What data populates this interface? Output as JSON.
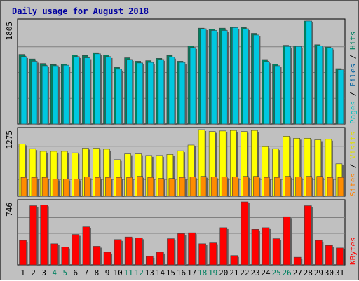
{
  "chart_data": {
    "type": "bar",
    "title": "Daily usage for August 2018",
    "categories": [
      "1",
      "2",
      "3",
      "4",
      "5",
      "6",
      "7",
      "8",
      "9",
      "10",
      "11",
      "12",
      "13",
      "14",
      "15",
      "16",
      "17",
      "18",
      "19",
      "20",
      "21",
      "22",
      "23",
      "24",
      "25",
      "26",
      "27",
      "28",
      "29",
      "30",
      "31"
    ],
    "weekend_days": [
      "4",
      "5",
      "11",
      "12",
      "18",
      "19",
      "25",
      "26"
    ],
    "panels": [
      {
        "id": "hits",
        "ymax_label": "1805",
        "ymax": 1805,
        "legend": [
          "Pages",
          "Files",
          "Hits"
        ],
        "legend_colors": [
          "#00c0c0",
          "#0060a0",
          "#008060"
        ],
        "series": [
          {
            "name": "Hits",
            "color": "#008060",
            "values": [
              1220,
              1140,
              1060,
              1040,
              1050,
              1210,
              1200,
              1250,
              1210,
              990,
              1160,
              1100,
              1110,
              1150,
              1200,
              1100,
              1370,
              1680,
              1660,
              1680,
              1700,
              1690,
              1590,
              1130,
              1050,
              1380,
              1370,
              1805,
              1390,
              1350,
              970
            ]
          },
          {
            "name": "Files",
            "color": "#00c8e0",
            "values": [
              1180,
              1100,
              1020,
              1020,
              1030,
              1180,
              1160,
              1230,
              1180,
              960,
              1130,
              1070,
              1080,
              1130,
              1170,
              1080,
              1340,
              1670,
              1640,
              1640,
              1690,
              1670,
              1560,
              1090,
              1020,
              1360,
              1360,
              1805,
              1370,
              1330,
              950
            ]
          }
        ]
      },
      {
        "id": "visits",
        "ymax_label": "1275",
        "ymax": 1275,
        "legend": [
          "Sites",
          "Visits"
        ],
        "legend_colors": [
          "#ff8000",
          "#e0e000"
        ],
        "series": [
          {
            "name": "Visits",
            "color": "#ffff00",
            "values": [
              1000,
              910,
              860,
              860,
              860,
              830,
              920,
              920,
              900,
              700,
              810,
              810,
              780,
              780,
              800,
              870,
              980,
              1275,
              1240,
              1250,
              1260,
              1240,
              1260,
              950,
              910,
              1150,
              1110,
              1110,
              1080,
              1090,
              620
            ]
          },
          {
            "name": "Sites",
            "color": "#ff8c00",
            "values": [
              360,
              360,
              360,
              330,
              330,
              330,
              370,
              360,
              360,
              360,
              360,
              380,
              360,
              340,
              340,
              360,
              370,
              380,
              370,
              370,
              370,
              380,
              380,
              360,
              360,
              380,
              370,
              380,
              380,
              360,
              360
            ]
          }
        ]
      },
      {
        "id": "kbytes",
        "ymax_label": "746",
        "ymax": 746,
        "legend": [
          "KBytes"
        ],
        "legend_colors": [
          "#ff0000"
        ],
        "series": [
          {
            "name": "KBytes",
            "color": "#ff0000",
            "values": [
              290,
              700,
              710,
              250,
              210,
              360,
              450,
              220,
              150,
              300,
              330,
              320,
              100,
              150,
              310,
              370,
              380,
              250,
              260,
              440,
              110,
              746,
              420,
              440,
              310,
              570,
              90,
              700,
              290,
              230,
              200
            ]
          }
        ]
      }
    ]
  }
}
